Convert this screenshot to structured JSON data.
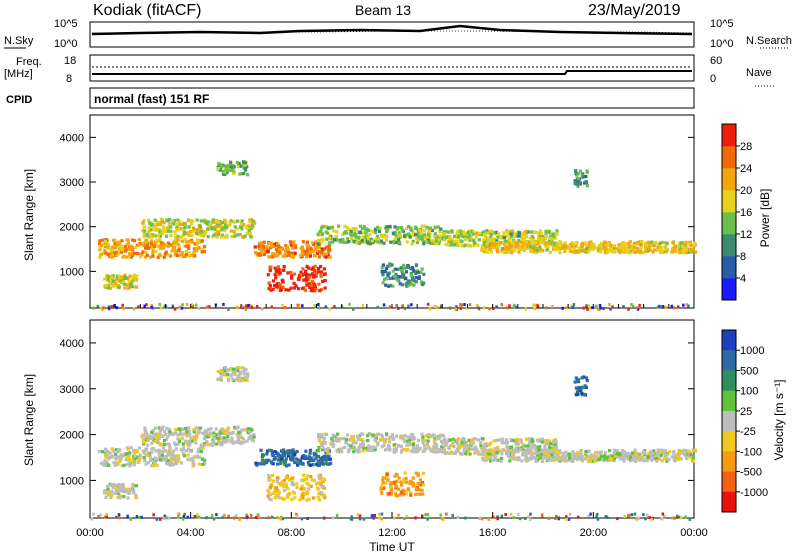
{
  "header": {
    "station": "Kodiak (fitACF)",
    "beam": "Beam 13",
    "date": "23/May/2019"
  },
  "panels": {
    "noise": {
      "left_label": "N.Sky",
      "right_label": "N.Search",
      "left_ticks": [
        "10^5",
        "10^0"
      ],
      "right_ticks": [
        "10^5",
        "10^0"
      ]
    },
    "freq": {
      "left_label_1": "Freq.",
      "left_label_2": "[MHz]",
      "right_label": "Nave",
      "left_ticks": [
        "18",
        "8"
      ],
      "right_ticks": [
        "60",
        "0"
      ]
    },
    "cpid": {
      "label": "CPID",
      "text": "normal (fast) 151 RF"
    }
  },
  "chart_data": [
    {
      "type": "heatmap",
      "title": "",
      "xlabel": "",
      "ylabel": "Slant Range [km]",
      "x_range_hours": [
        0,
        24
      ],
      "ylim": [
        180,
        4500
      ],
      "y_ticks": [
        "1000",
        "2000",
        "3000",
        "4000"
      ],
      "colorbar": {
        "label": "Power [dB]",
        "ticks": [
          "4",
          "8",
          "12",
          "16",
          "20",
          "24",
          "28"
        ],
        "colors": [
          "#1a1aff",
          "#2a5caa",
          "#3e8a70",
          "#6bbf4a",
          "#e6d21a",
          "#f2a60f",
          "#f06a0a",
          "#ee1e0e"
        ]
      },
      "regions": [
        {
          "t0": 0.3,
          "t1": 4.5,
          "r0": 1350,
          "r1": 1750,
          "level": 0.72
        },
        {
          "t0": 2.0,
          "t1": 6.5,
          "r0": 1800,
          "r1": 2200,
          "level": 0.55
        },
        {
          "t0": 6.5,
          "t1": 9.5,
          "r0": 1350,
          "r1": 1700,
          "level": 0.8
        },
        {
          "t0": 7.0,
          "t1": 9.3,
          "r0": 600,
          "r1": 1150,
          "level": 0.97
        },
        {
          "t0": 9.0,
          "t1": 14.0,
          "r0": 1650,
          "r1": 2050,
          "level": 0.45
        },
        {
          "t0": 11.5,
          "t1": 13.2,
          "r0": 700,
          "r1": 1200,
          "level": 0.28
        },
        {
          "t0": 14.0,
          "t1": 18.5,
          "r0": 1600,
          "r1": 1950,
          "level": 0.5
        },
        {
          "t0": 15.5,
          "t1": 24.0,
          "r0": 1450,
          "r1": 1700,
          "level": 0.62
        },
        {
          "t0": 0.5,
          "t1": 1.8,
          "r0": 650,
          "r1": 950,
          "level": 0.6
        },
        {
          "t0": 5.0,
          "t1": 6.2,
          "r0": 3200,
          "r1": 3500,
          "level": 0.4
        },
        {
          "t0": 19.2,
          "t1": 19.7,
          "r0": 2900,
          "r1": 3300,
          "level": 0.3
        }
      ]
    },
    {
      "type": "heatmap",
      "title": "",
      "xlabel": "Time UT",
      "ylabel": "Slant Range [km]",
      "x_range_hours": [
        0,
        24
      ],
      "ylim": [
        180,
        4500
      ],
      "y_ticks": [
        "1000",
        "2000",
        "3000",
        "4000"
      ],
      "x_ticks": [
        "00:00",
        "04:00",
        "08:00",
        "12:00",
        "16:00",
        "20:00",
        "00:00"
      ],
      "colorbar": {
        "label": "Velocity [m s⁻¹]",
        "ticks": [
          "1000",
          "500",
          "100",
          "25",
          "-25",
          "-100",
          "-500",
          "-1000"
        ],
        "colors": [
          "#1e3fbd",
          "#2e6aa8",
          "#2f8f5c",
          "#5fc23a",
          "#bdbdbd",
          "#f3c81c",
          "#f59a12",
          "#f26010",
          "#e8120c"
        ]
      },
      "regions": [
        {
          "t0": 0.3,
          "t1": 4.5,
          "r0": 1350,
          "r1": 1750,
          "level": 4
        },
        {
          "t0": 2.0,
          "t1": 6.5,
          "r0": 1800,
          "r1": 2200,
          "level": 4
        },
        {
          "t0": 6.5,
          "t1": 9.5,
          "r0": 1350,
          "r1": 1700,
          "level": 1
        },
        {
          "t0": 7.0,
          "t1": 9.3,
          "r0": 600,
          "r1": 1150,
          "level": 5
        },
        {
          "t0": 9.0,
          "t1": 14.0,
          "r0": 1650,
          "r1": 2050,
          "level": 4
        },
        {
          "t0": 11.5,
          "t1": 13.2,
          "r0": 700,
          "r1": 1200,
          "level": 6
        },
        {
          "t0": 14.0,
          "t1": 18.5,
          "r0": 1600,
          "r1": 1950,
          "level": 4
        },
        {
          "t0": 15.5,
          "t1": 24.0,
          "r0": 1450,
          "r1": 1700,
          "level": 4
        },
        {
          "t0": 0.5,
          "t1": 1.8,
          "r0": 650,
          "r1": 950,
          "level": 4
        },
        {
          "t0": 5.0,
          "t1": 6.2,
          "r0": 3200,
          "r1": 3500,
          "level": 4
        },
        {
          "t0": 19.2,
          "t1": 19.7,
          "r0": 2900,
          "r1": 3300,
          "level": 1
        }
      ]
    }
  ]
}
